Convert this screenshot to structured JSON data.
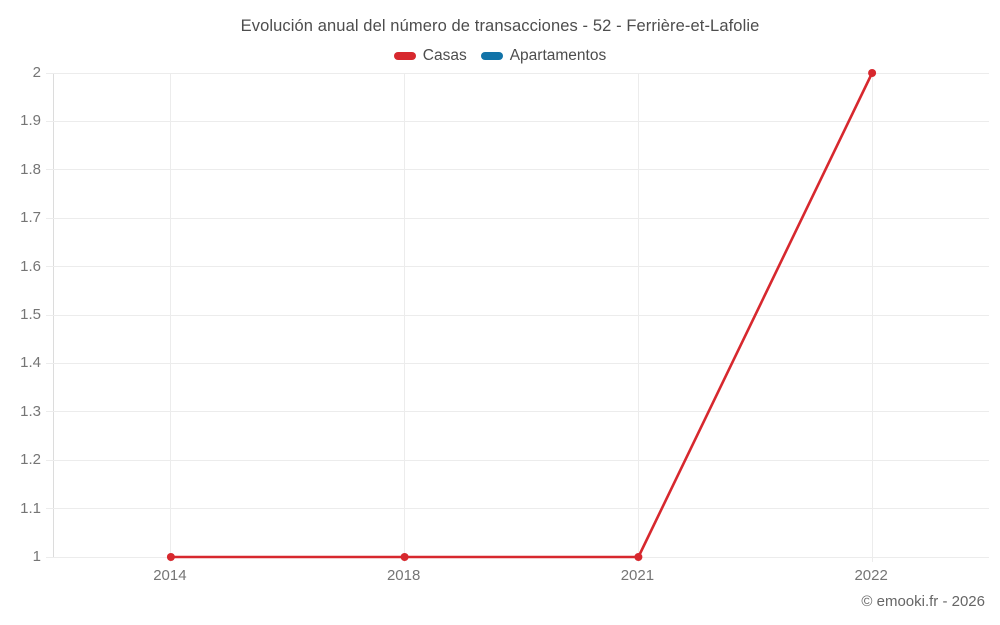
{
  "header": {
    "title": "Evolución anual del número de transacciones - 52 - Ferrière-et-Lafolie"
  },
  "legend": {
    "items": [
      {
        "label": "Casas",
        "color": "#d7282e"
      },
      {
        "label": "Apartamentos",
        "color": "#1173a8"
      }
    ]
  },
  "footer": {
    "credit": "© emooki.fr - 2026"
  },
  "colors": {
    "casas": "#d7282e",
    "apartamentos": "#1173a8",
    "gridline": "#ececec",
    "axis_line": "#dcdcdc",
    "tick_text": "#757575",
    "title_text": "#4d4d4d"
  },
  "chart_data": {
    "type": "line",
    "title": "Evolución anual del número de transacciones - 52 - Ferrière-et-Lafolie",
    "categories": [
      "2014",
      "2018",
      "2021",
      "2022"
    ],
    "series": [
      {
        "name": "Casas",
        "color": "#d7282e",
        "values": [
          1,
          1,
          1,
          2
        ]
      },
      {
        "name": "Apartamentos",
        "color": "#1173a8",
        "values": []
      }
    ],
    "xlabel": "",
    "ylabel": "",
    "ylim": [
      1,
      2
    ],
    "ytick_step": 0.1,
    "ytick_labels": [
      "1",
      "1.1",
      "1.2",
      "1.3",
      "1.4",
      "1.5",
      "1.6",
      "1.7",
      "1.8",
      "1.9",
      "2"
    ],
    "grid": true,
    "legend_position": "top",
    "annotations": [
      "© emooki.fr - 2026"
    ]
  }
}
